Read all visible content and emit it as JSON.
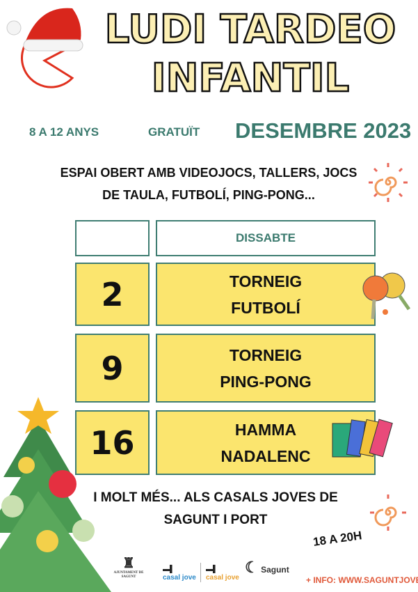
{
  "title_line1": "LUDI TARDEO",
  "title_line2": "INFANTIL",
  "ages": "8 A 12 ANYS",
  "price": "GRATUÏT",
  "month": "DESEMBRE 2023",
  "description_line1": "ESPAI OBERT AMB VIDEOJOCS, TALLERS, JOCS",
  "description_line2": "DE TAULA, FUTBOLÍ, PING-PONG...",
  "schedule": {
    "header": "DISSABTE",
    "rows": [
      {
        "day": "2",
        "line1": "TORNEIG",
        "line2": "FUTBOLÍ"
      },
      {
        "day": "9",
        "line1": "TORNEIG",
        "line2": "PING-PONG"
      },
      {
        "day": "16",
        "line1": "HAMMA",
        "line2": "NADALENC"
      }
    ]
  },
  "footer_line1": "I MOLT MÉS... ALS CASALS JOVES DE",
  "footer_line2": "SAGUNT I PORT",
  "hours": "18 A 20H",
  "info": "+ INFO: WWW.SAGUNTJOVE.ES",
  "logos": {
    "ajuntament": "AJUNTAMENT DE SAGUNT",
    "casal1": "casal jove",
    "casal2": "casal jove",
    "sagunt": "Sagunt"
  },
  "colors": {
    "teal": "#3b7a6e",
    "yellow": "#fbe56e",
    "title_fill": "#fcefb4",
    "accent_red": "#e0301e",
    "info": "#e0593a"
  }
}
